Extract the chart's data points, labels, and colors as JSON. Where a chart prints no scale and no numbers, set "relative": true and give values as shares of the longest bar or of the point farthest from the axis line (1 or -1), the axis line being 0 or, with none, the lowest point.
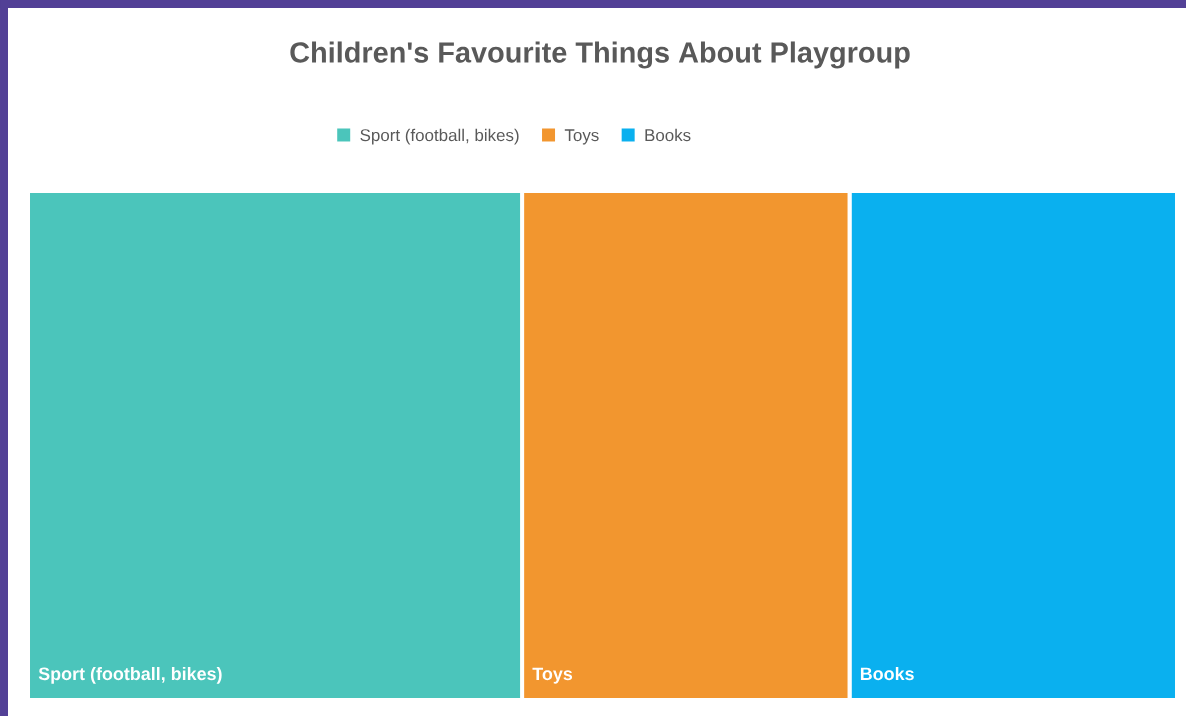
{
  "chart_data": {
    "type": "bar",
    "orientation": "horizontal",
    "stacked": true,
    "relative": true,
    "title": "Children's Favourite Things About Playgroup",
    "categories": [
      null
    ],
    "series": [
      {
        "name": "Sport (football, bikes)",
        "color": "#4bc5bb",
        "values": [
          0.43
        ]
      },
      {
        "name": "Toys",
        "color": "#f2962f",
        "values": [
          0.285
        ]
      },
      {
        "name": "Books",
        "color": "#0ab0ef",
        "values": [
          0.285
        ]
      }
    ],
    "legend": "top"
  }
}
